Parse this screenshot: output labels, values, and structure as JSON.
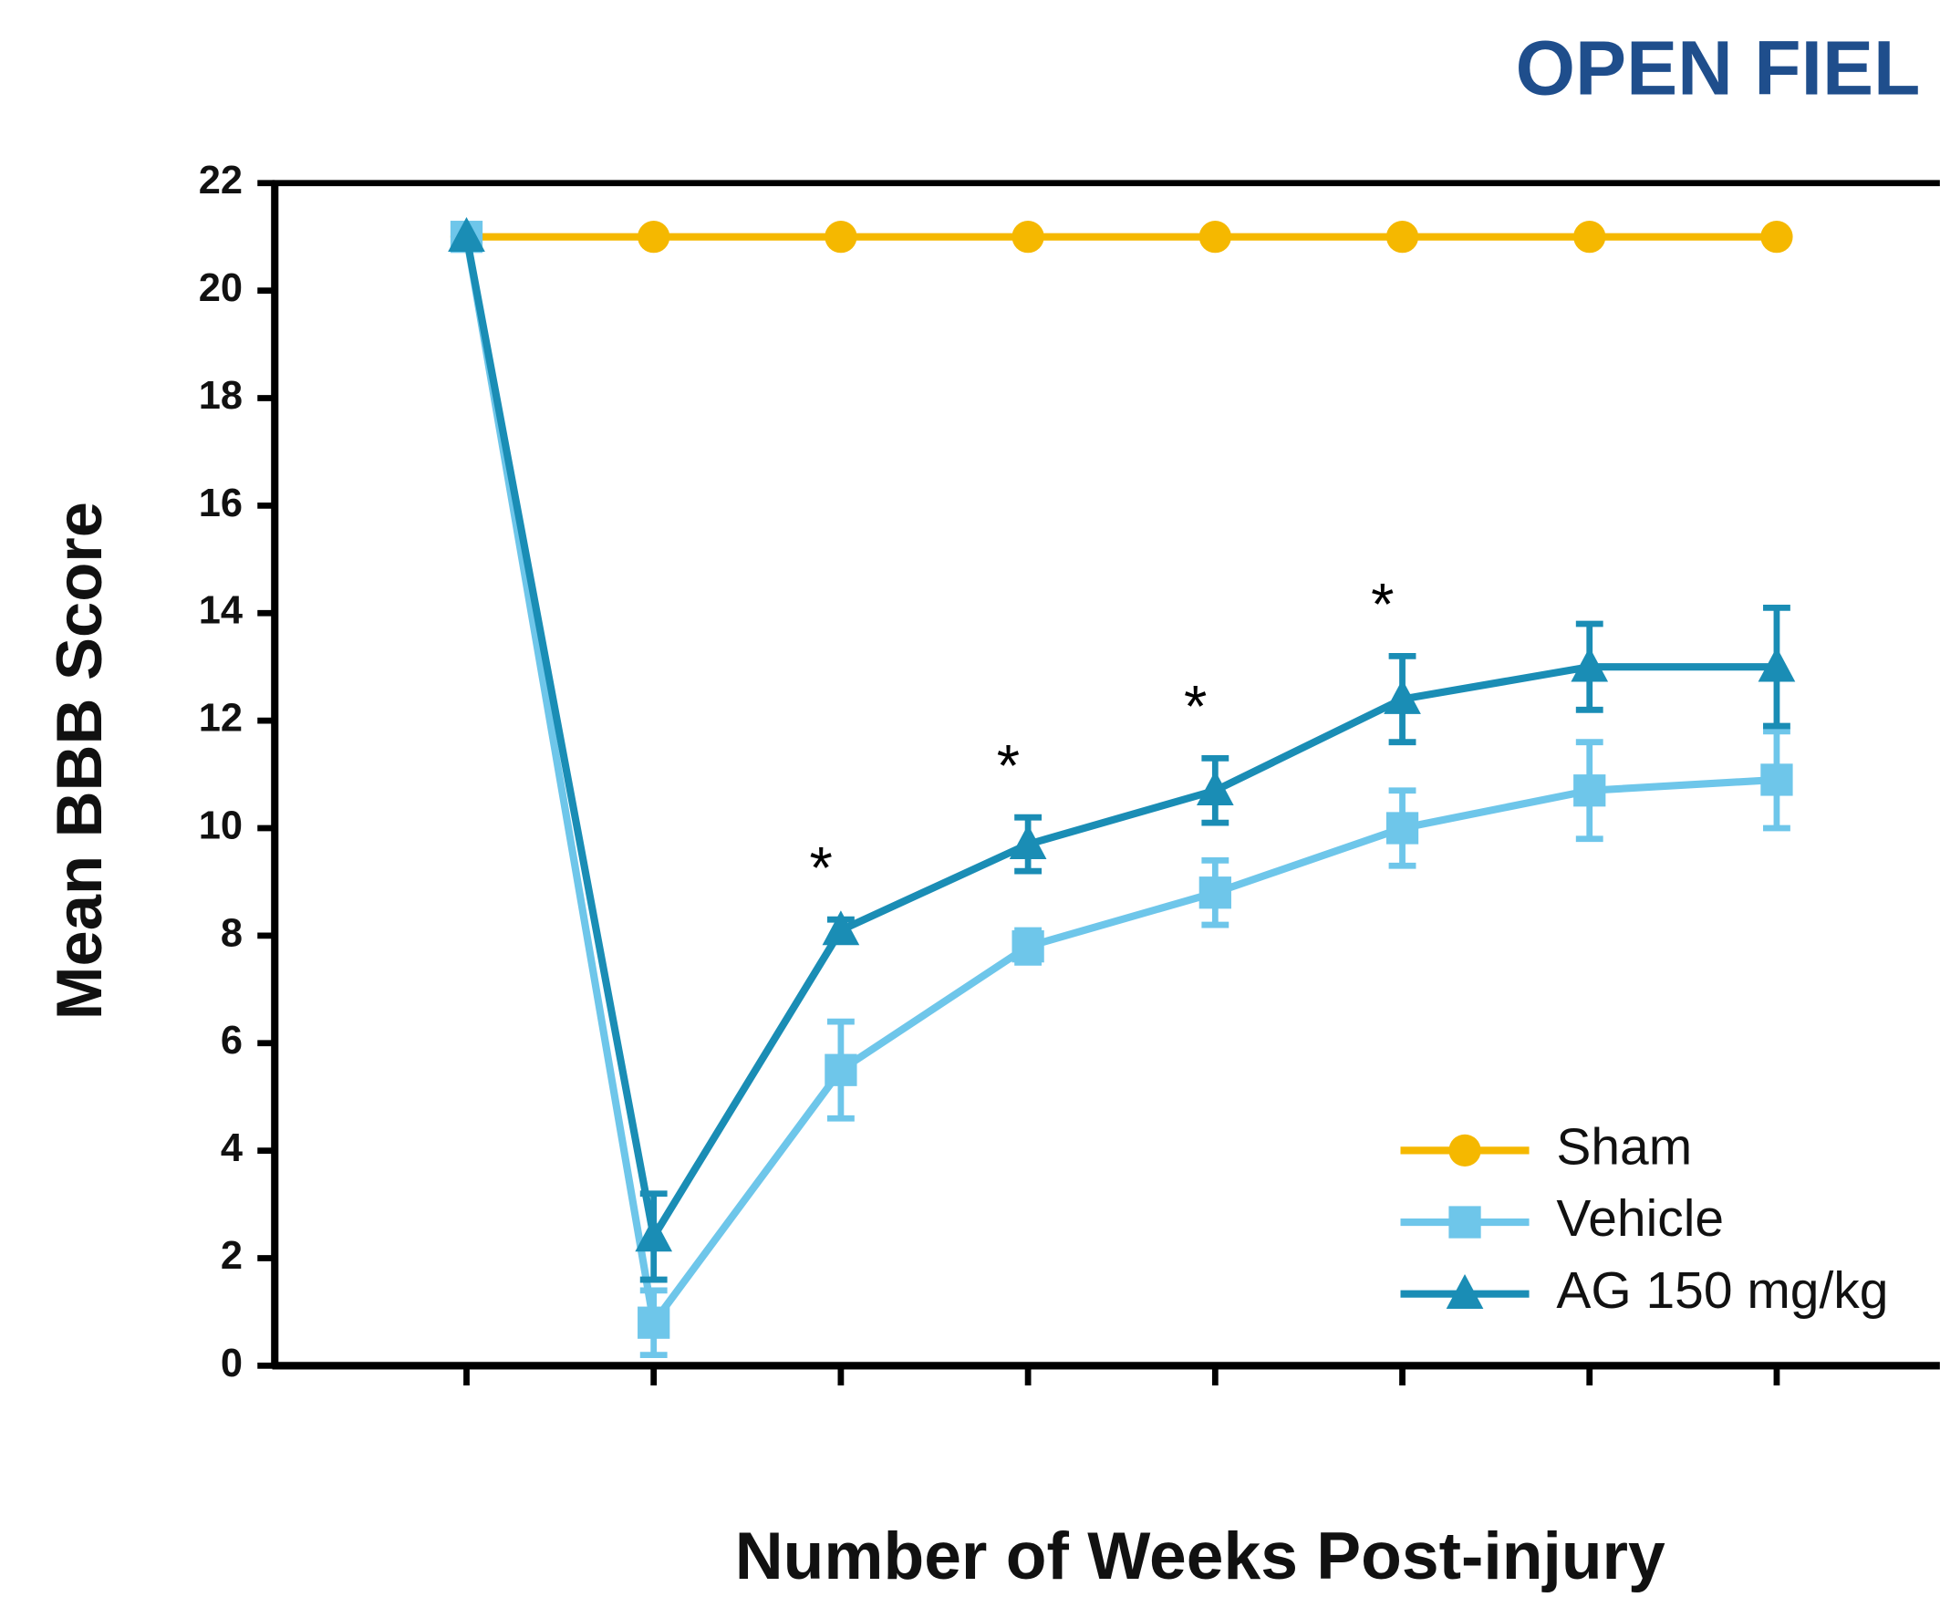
{
  "chart_data": {
    "type": "line",
    "title": "OPEN FIEL",
    "xlabel": "Number of Weeks Post-injury",
    "ylabel": "Mean BBB Score",
    "categories": [
      null,
      null,
      null,
      null,
      null,
      null,
      null,
      null
    ],
    "series": [
      {
        "name": "Sham",
        "color": "#f5b800",
        "marker": "circle",
        "values": [
          21,
          21,
          21,
          21,
          21,
          21,
          21,
          21
        ]
      },
      {
        "name": "Vehicle",
        "color": "#6ec6ea",
        "marker": "square",
        "values": [
          21,
          0.8,
          5.5,
          7.8,
          8.8,
          10,
          10.7,
          10.9
        ],
        "errors": [
          0,
          0.6,
          0.9,
          0.3,
          0.6,
          0.7,
          0.9,
          0.9
        ]
      },
      {
        "name": "AG 150 mg/kg",
        "color": "#1a8db5",
        "marker": "triangle",
        "values": [
          21,
          2.4,
          8.1,
          9.7,
          10.7,
          12.4,
          13,
          13
        ],
        "errors": [
          0,
          0.8,
          0.2,
          0.5,
          0.6,
          0.8,
          0.8,
          1.1
        ]
      }
    ],
    "annotations": [
      "*",
      "*",
      "*",
      "*"
    ],
    "ylim": [
      0,
      22
    ],
    "yticks": [
      0,
      2,
      4,
      6,
      8,
      10,
      12,
      14,
      16,
      18,
      20,
      22
    ],
    "legend": "lower right"
  }
}
